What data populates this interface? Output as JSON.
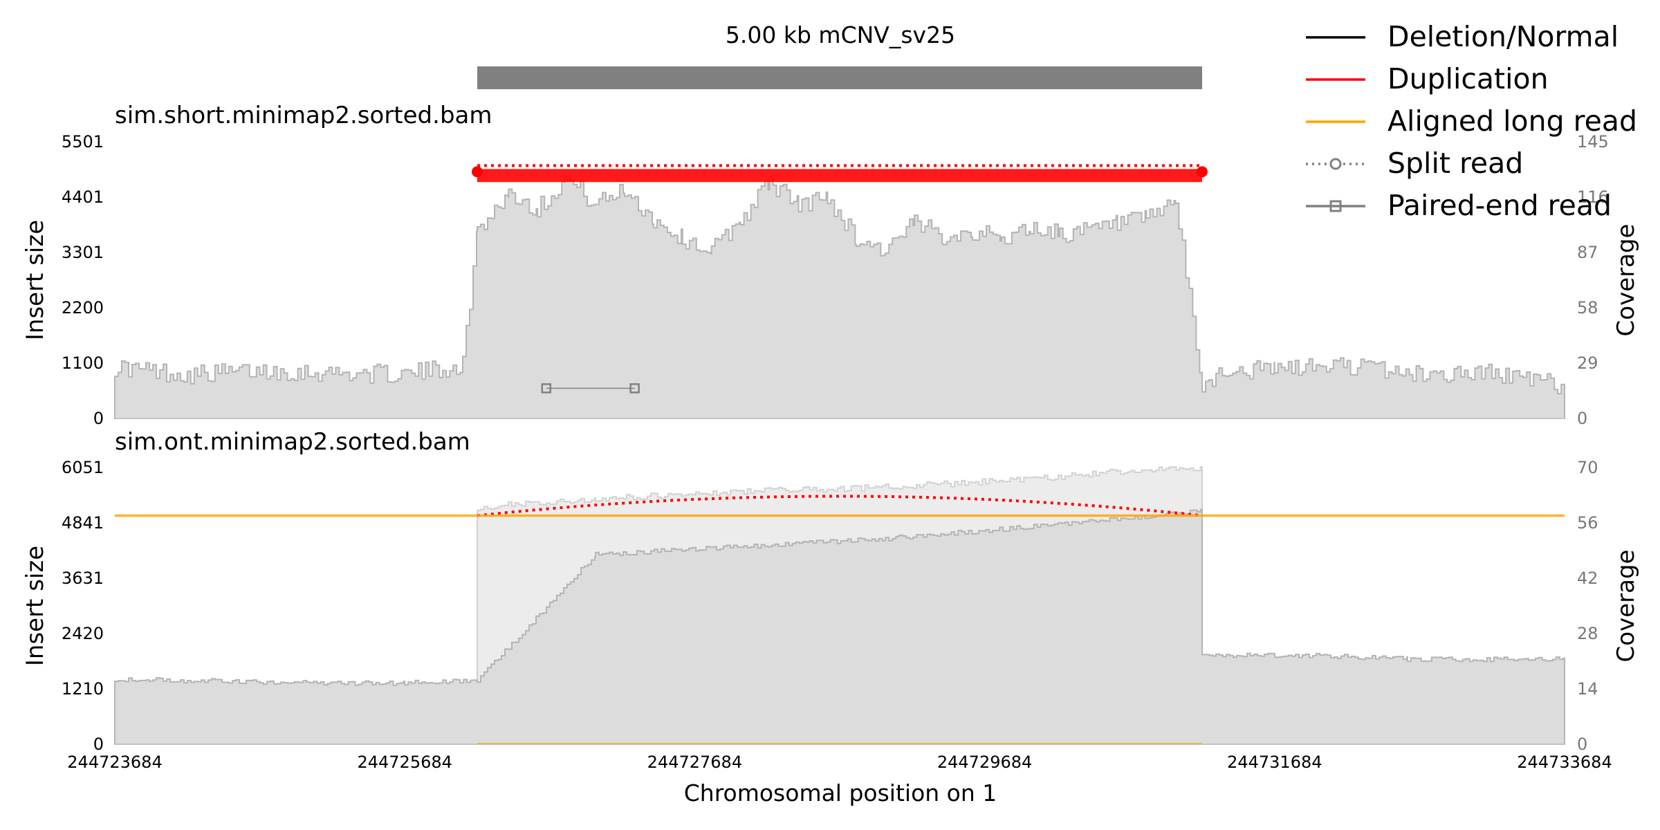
{
  "chart_data": {
    "type": "area",
    "title": "5.00 kb mCNV_sv25",
    "xlabel": "Chromosomal position on 1",
    "x_range": [
      244723684,
      244733684
    ],
    "x_ticks": [
      "244723684",
      "244725684",
      "244727684",
      "244729684",
      "244731684",
      "244733684"
    ],
    "sv_region": {
      "start": 244726184,
      "end": 244731184
    },
    "colors": {
      "duplication": "#ff0000",
      "long_read": "#ffa500",
      "coverage_fill": "#dcdcdc",
      "coverage_line": "#b4b4b4",
      "sv_bar": "#808080",
      "paired_end": "#808080"
    },
    "legend": {
      "placement": "top-right",
      "entries": [
        {
          "label": "Deletion/Normal",
          "color": "#000000",
          "style": "solid"
        },
        {
          "label": "Duplication",
          "color": "#ff0000",
          "style": "solid"
        },
        {
          "label": "Aligned long read",
          "color": "#ffa500",
          "style": "solid"
        },
        {
          "label": "Split read",
          "color": "#808080",
          "style": "dotted-circle"
        },
        {
          "label": "Paired-end read",
          "color": "#808080",
          "style": "solid-square"
        }
      ]
    },
    "panels": [
      {
        "title": "sim.short.minimap2.sorted.bam",
        "ylabel": "Insert size",
        "y2label": "Coverage",
        "ylim": [
          0,
          5501
        ],
        "y_ticks": [
          "0",
          "1100",
          "2200",
          "3301",
          "4401",
          "5501"
        ],
        "y2lim": [
          0,
          145
        ],
        "y2_ticks": [
          "0",
          "29",
          "58",
          "87",
          "116",
          "145"
        ],
        "coverage": {
          "x": [
            244723684,
            244724184,
            244724684,
            244725184,
            244725684,
            244726084,
            244726184,
            244726400,
            244726600,
            244726800,
            244727000,
            244727200,
            244727400,
            244727600,
            244727800,
            244728000,
            244728200,
            244728400,
            244728600,
            244728800,
            244729000,
            244729200,
            244729400,
            244729600,
            244729800,
            244730000,
            244730200,
            244730400,
            244730600,
            244730800,
            244731000,
            244731184,
            244731300,
            244731684,
            244732184,
            244732684,
            244733184,
            244733684
          ],
          "y": [
            27,
            23,
            25,
            24,
            23,
            28,
            99,
            118,
            110,
            126,
            112,
            120,
            104,
            94,
            88,
            104,
            124,
            112,
            116,
            94,
            88,
            102,
            96,
            98,
            94,
            100,
            97,
            98,
            102,
            104,
            114,
            16,
            24,
            26,
            28,
            23,
            24,
            17
          ]
        },
        "split_reads": [
          {
            "start": 244726184,
            "end": 244731184,
            "type": "Duplication",
            "insert_size": 5000
          }
        ],
        "duplication_pairs": {
          "start": 244726184,
          "end": 244731184,
          "insert_size_range": [
            4700,
            4960
          ]
        },
        "paired_end": [
          {
            "start": 244726660,
            "end": 244727270,
            "insert_size": 600
          }
        ]
      },
      {
        "title": "sim.ont.minimap2.sorted.bam",
        "ylabel": "Insert size",
        "y2label": "Coverage",
        "ylim": [
          0,
          6051
        ],
        "y_ticks": [
          "0",
          "1210",
          "2420",
          "3631",
          "4841",
          "6051"
        ],
        "y2lim": [
          0,
          70
        ],
        "y2_ticks": [
          "0",
          "14",
          "28",
          "42",
          "56",
          "70"
        ],
        "coverage": {
          "x": [
            244723684,
            244724984,
            244725684,
            244726184,
            244727000,
            244728000,
            244729000,
            244730000,
            244730600,
            244731184,
            244731184,
            244732000,
            244732600,
            244733684
          ],
          "y": [
            16.5,
            15.5,
            15.5,
            16,
            48,
            50,
            52,
            55,
            57,
            59,
            22.5,
            22.5,
            21.5,
            21.5
          ]
        },
        "coverage_upper": {
          "x": [
            244726184,
            244727000,
            244728000,
            244729000,
            244730000,
            244730600,
            244731184
          ],
          "y": [
            60,
            62,
            64,
            65,
            67,
            69,
            70
          ]
        },
        "split_reads": [
          {
            "start": 244726184,
            "end": 244731184,
            "type": "Duplication",
            "insert_size": 5000
          }
        ],
        "long_reads": [
          {
            "start": 244723684,
            "end": 244733684,
            "insert_size": 5000
          }
        ]
      }
    ]
  }
}
